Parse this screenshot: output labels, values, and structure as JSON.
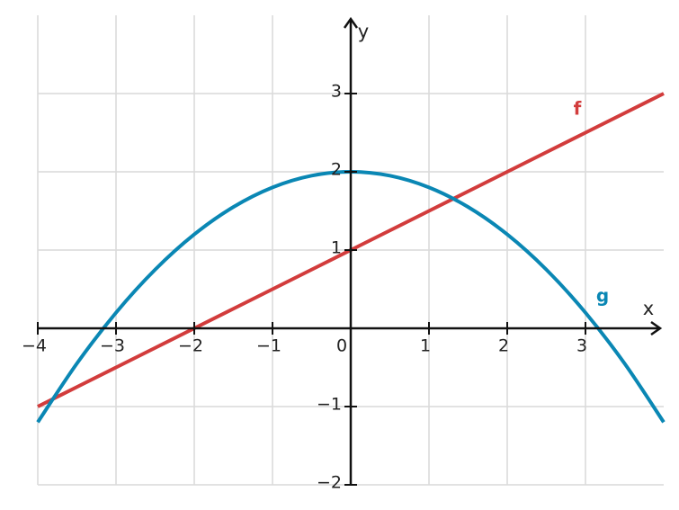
{
  "chart_data": {
    "type": "line",
    "x": [
      -4,
      -3.5,
      -3,
      -2.5,
      -2,
      -1.5,
      -1,
      -0.5,
      0,
      0.5,
      1,
      1.5,
      2,
      2.5,
      3,
      3.5,
      4
    ],
    "series": [
      {
        "name": "f",
        "color": "#d23c3c",
        "values": [
          -1,
          -0.75,
          -0.5,
          -0.25,
          0,
          0.25,
          0.5,
          0.75,
          1,
          1.25,
          1.5,
          1.75,
          2,
          2.25,
          2.5,
          2.75,
          3
        ]
      },
      {
        "name": "g",
        "color": "#0a87b4",
        "values": [
          -1.2,
          -0.45,
          0.2,
          0.75,
          1.2,
          1.55,
          1.8,
          1.95,
          2,
          1.95,
          1.8,
          1.55,
          1.2,
          0.75,
          0.2,
          -0.45,
          -1.2
        ]
      }
    ],
    "x_label": "x",
    "y_label": "y",
    "xlim": [
      -4,
      4
    ],
    "ylim": [
      -2,
      4
    ],
    "xticks": [
      {
        "value": -4,
        "label": "−4"
      },
      {
        "value": -3,
        "label": "−3"
      },
      {
        "value": -2,
        "label": "−2"
      },
      {
        "value": -1,
        "label": "−1"
      },
      0,
      1,
      2,
      3
    ],
    "yticks": [
      {
        "value": -2,
        "label": "−2"
      },
      {
        "value": -1,
        "label": "−1"
      },
      1,
      2,
      3
    ],
    "grid": true
  }
}
